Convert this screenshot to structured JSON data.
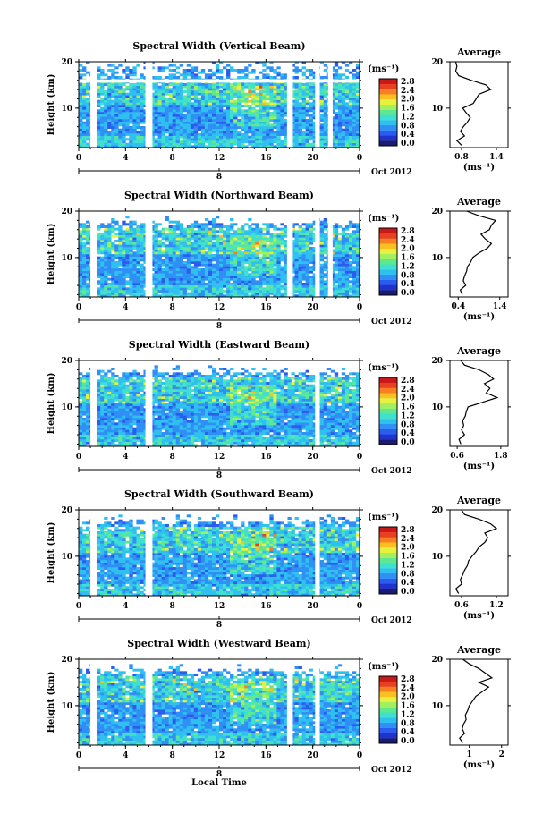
{
  "chart_data": [
    {
      "type": "heatmap",
      "title": "Spectral Width (Vertical Beam)",
      "ylabel": "Height (km)",
      "units": "(ms⁻¹)",
      "x_ticks": [
        "0",
        "4",
        "8",
        "12",
        "16",
        "20",
        "0"
      ],
      "y_ticks": [
        "10",
        "20"
      ],
      "xlim": [
        0,
        24
      ],
      "ylim": [
        1.5,
        20
      ],
      "colorbar_ticks": [
        "0.0",
        "0.4",
        "0.8",
        "1.2",
        "1.6",
        "2.0",
        "2.4",
        "2.8"
      ],
      "date_label": "Oct 2012",
      "day_marker": "8",
      "gaps": [
        [
          1,
          1.6
        ],
        [
          5.7,
          6.3
        ],
        [
          17.8,
          18.3
        ],
        [
          20.2,
          20.6
        ],
        [
          21.3,
          21.7
        ]
      ],
      "gap_rows": [
        [
          15.5,
          16.2
        ]
      ],
      "average": {
        "title": "Average",
        "xticks": [
          "0.8",
          "1.4"
        ],
        "xlim": [
          0.6,
          1.6
        ],
        "xlabel": "(ms⁻¹)",
        "height": [
          2,
          3,
          4,
          5,
          6,
          7,
          8,
          9,
          10,
          11,
          12,
          13,
          14,
          15,
          16,
          17,
          18,
          19,
          20
        ],
        "values": [
          0.8,
          0.72,
          0.85,
          0.78,
          0.83,
          0.9,
          0.95,
          0.88,
          0.82,
          1.0,
          1.05,
          1.1,
          1.3,
          1.22,
          0.97,
          0.75,
          0.7,
          0.72,
          0.7
        ]
      }
    },
    {
      "type": "heatmap",
      "title": "Spectral Width (Northward Beam)",
      "ylabel": "Height (km)",
      "units": "(ms⁻¹)",
      "x_ticks": [
        "0",
        "4",
        "8",
        "12",
        "16",
        "20",
        "0"
      ],
      "y_ticks": [
        "10",
        "20"
      ],
      "xlim": [
        0,
        24
      ],
      "ylim": [
        1.5,
        20
      ],
      "colorbar_ticks": [
        "0.0",
        "0.4",
        "0.8",
        "1.2",
        "1.6",
        "2.0",
        "2.4",
        "2.8"
      ],
      "date_label": "Oct 2012",
      "day_marker": "8",
      "gaps": [
        [
          1,
          1.6
        ],
        [
          5.7,
          6.3
        ],
        [
          17.8,
          18.3
        ],
        [
          20.2,
          20.6
        ],
        [
          21.3,
          21.7
        ]
      ],
      "gap_rows": [],
      "average": {
        "title": "Average",
        "xticks": [
          "0.4",
          "1.4"
        ],
        "xlim": [
          0.2,
          1.6
        ],
        "xlabel": "(ms⁻¹)",
        "height": [
          2,
          3,
          4,
          5,
          6,
          7,
          8,
          9,
          10,
          11,
          12,
          13,
          14,
          15,
          16,
          17,
          18,
          19,
          20
        ],
        "values": [
          0.5,
          0.45,
          0.58,
          0.52,
          0.55,
          0.6,
          0.62,
          0.7,
          0.75,
          0.9,
          1.1,
          1.2,
          1.05,
          0.95,
          1.15,
          1.2,
          1.3,
          0.9,
          0.6
        ]
      }
    },
    {
      "type": "heatmap",
      "title": "Spectral Width (Eastward Beam)",
      "ylabel": "Height (km)",
      "units": "(ms⁻¹)",
      "x_ticks": [
        "0",
        "4",
        "8",
        "12",
        "16",
        "20",
        "0"
      ],
      "y_ticks": [
        "10",
        "20"
      ],
      "xlim": [
        0,
        24
      ],
      "ylim": [
        1.5,
        20
      ],
      "colorbar_ticks": [
        "0.0",
        "0.4",
        "0.8",
        "1.2",
        "1.6",
        "2.0",
        "2.4",
        "2.8"
      ],
      "date_label": "Oct 2012",
      "day_marker": "8",
      "gaps": [
        [
          1,
          1.6
        ],
        [
          5.7,
          6.3
        ],
        [
          20.2,
          20.6
        ]
      ],
      "gap_rows": [],
      "average": {
        "title": "Average",
        "xticks": [
          "0.6",
          "1.8"
        ],
        "xlim": [
          0.4,
          2.0
        ],
        "xlabel": "(ms⁻¹)",
        "height": [
          2,
          3,
          4,
          5,
          6,
          7,
          8,
          9,
          10,
          11,
          12,
          13,
          14,
          15,
          16,
          17,
          18,
          19,
          20
        ],
        "values": [
          0.7,
          0.65,
          0.8,
          0.72,
          0.78,
          0.75,
          0.82,
          0.85,
          0.9,
          1.3,
          1.7,
          1.4,
          1.5,
          1.35,
          1.6,
          1.45,
          1.2,
          0.8,
          0.7
        ]
      }
    },
    {
      "type": "heatmap",
      "title": "Spectral Width (Southward Beam)",
      "ylabel": "Height (km)",
      "units": "(ms⁻¹)",
      "x_ticks": [
        "0",
        "4",
        "8",
        "12",
        "16",
        "20",
        "0"
      ],
      "y_ticks": [
        "10",
        "20"
      ],
      "xlim": [
        0,
        24
      ],
      "ylim": [
        1.5,
        20
      ],
      "colorbar_ticks": [
        "0.0",
        "0.4",
        "0.8",
        "1.2",
        "1.6",
        "2.0",
        "2.4",
        "2.8"
      ],
      "date_label": "Oct 2012",
      "day_marker": "8",
      "gaps": [
        [
          1,
          1.6
        ],
        [
          5.7,
          6.3
        ],
        [
          20.2,
          20.6
        ]
      ],
      "gap_rows": [],
      "average": {
        "title": "Average",
        "xticks": [
          "0.6",
          "1.2"
        ],
        "xlim": [
          0.4,
          1.4
        ],
        "xlabel": "(ms⁻¹)",
        "height": [
          2,
          3,
          4,
          5,
          6,
          7,
          8,
          9,
          10,
          11,
          12,
          13,
          14,
          15,
          16,
          17,
          18,
          19,
          20
        ],
        "values": [
          0.55,
          0.5,
          0.6,
          0.58,
          0.62,
          0.65,
          0.7,
          0.72,
          0.78,
          0.85,
          0.9,
          1.0,
          1.05,
          1.0,
          1.2,
          1.1,
          0.9,
          0.65,
          0.6
        ]
      }
    },
    {
      "type": "heatmap",
      "title": "Spectral Width (Westward Beam)",
      "ylabel": "Height (km)",
      "units": "(ms⁻¹)",
      "x_ticks": [
        "0",
        "4",
        "8",
        "12",
        "16",
        "20",
        "0"
      ],
      "y_ticks": [
        "10",
        "20"
      ],
      "xlim": [
        0,
        24
      ],
      "ylim": [
        1.5,
        20
      ],
      "colorbar_ticks": [
        "0.0",
        "0.4",
        "0.8",
        "1.2",
        "1.6",
        "2.0",
        "2.4",
        "2.8"
      ],
      "date_label": "Oct 2012",
      "day_marker": "8",
      "gaps": [
        [
          1,
          1.6
        ],
        [
          5.7,
          6.3
        ],
        [
          17.8,
          18.3
        ],
        [
          20.2,
          20.6
        ]
      ],
      "gap_rows": [],
      "average": {
        "title": "Average",
        "xticks": [
          "1",
          "2"
        ],
        "xlim": [
          0.4,
          2.2
        ],
        "xlabel": "(ms⁻¹)",
        "height": [
          2,
          3,
          4,
          5,
          6,
          7,
          8,
          9,
          10,
          11,
          12,
          13,
          14,
          15,
          16,
          17,
          18,
          19,
          20
        ],
        "values": [
          0.8,
          0.7,
          0.85,
          0.78,
          0.82,
          0.9,
          0.88,
          0.95,
          1.0,
          1.1,
          1.2,
          1.4,
          1.6,
          1.3,
          1.7,
          1.5,
          1.3,
          1.0,
          0.8
        ]
      }
    }
  ],
  "xlabel": "Local Time",
  "colormap": [
    "#1a1d6e",
    "#2233cc",
    "#2a5cf0",
    "#2f8ff5",
    "#30c0f0",
    "#40e0d0",
    "#60e890",
    "#a0f060",
    "#e8f040",
    "#f8c020",
    "#f88020",
    "#e84020",
    "#c81818"
  ]
}
